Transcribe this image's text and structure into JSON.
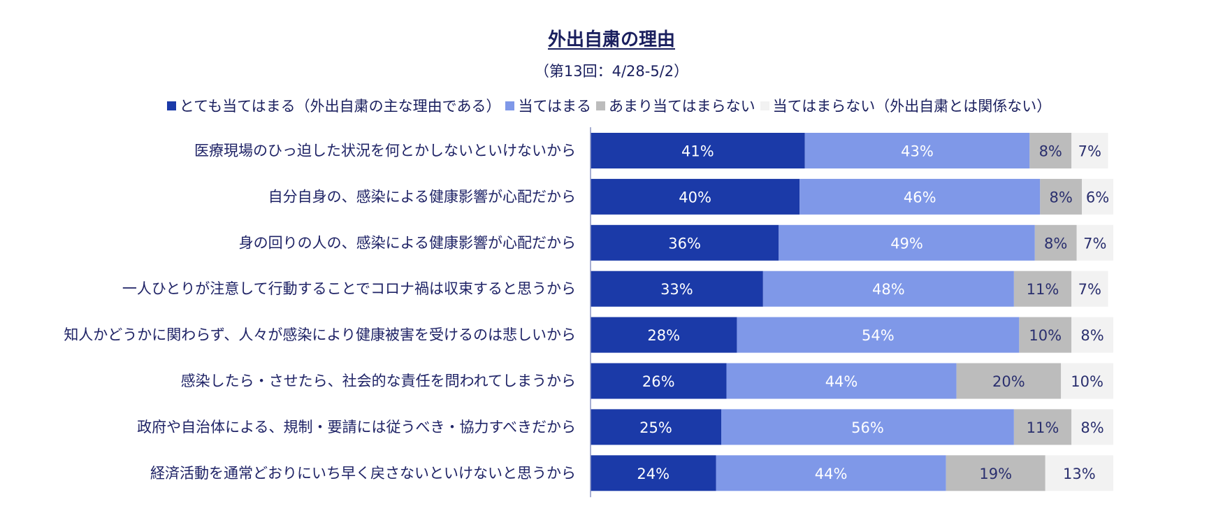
{
  "title": "外出自粛の理由",
  "subtitle": "（第13回：4/28-5/2）",
  "legend": [
    {
      "label": "とても当てはまる（外出自粛の主な理由である）",
      "color": "#1b3aa8"
    },
    {
      "label": "当てはまる",
      "color": "#7f98e8"
    },
    {
      "label": "あまり当てはまらない",
      "color": "#bcbcbc"
    },
    {
      "label": "当てはまらない（外出自粛とは関係ない）",
      "color": "#f2f2f2"
    }
  ],
  "chart_data": {
    "type": "bar",
    "orientation": "horizontal",
    "stacked": true,
    "title": "外出自粛の理由",
    "subtitle": "（第13回：4/28-5/2）",
    "unit": "%",
    "xlim": [
      0,
      100
    ],
    "categories": [
      "医療現場のひっ迫した状況を何とかしないといけないから",
      "自分自身の、感染による健康影響が心配だから",
      "身の回りの人の、感染による健康影響が心配だから",
      "一人ひとりが注意して行動することでコロナ禍は収束すると思うから",
      "知人かどうかに関わらず、人々が感染により健康被害を受けるのは悲しいから",
      "感染したら・させたら、社会的な責任を問われてしまうから",
      "政府や自治体による、規制・要請には従うべき・協力すべきだから",
      "経済活動を通常どおりにいち早く戻さないといけないと思うから"
    ],
    "series": [
      {
        "name": "とても当てはまる（外出自粛の主な理由である）",
        "color": "#1b3aa8",
        "label_color": "#ffffff",
        "values": [
          41,
          40,
          36,
          33,
          28,
          26,
          25,
          24
        ]
      },
      {
        "name": "当てはまる",
        "color": "#7f98e8",
        "label_color": "#ffffff",
        "values": [
          43,
          46,
          49,
          48,
          54,
          44,
          56,
          44
        ]
      },
      {
        "name": "あまり当てはまらない",
        "color": "#bcbcbc",
        "label_color": "#2a2f6e",
        "values": [
          8,
          8,
          8,
          11,
          10,
          20,
          11,
          19
        ]
      },
      {
        "name": "当てはまらない（外出自粛とは関係ない）",
        "color": "#f2f2f2",
        "label_color": "#2a2f6e",
        "values": [
          7,
          6,
          7,
          7,
          8,
          10,
          8,
          13
        ]
      }
    ]
  }
}
